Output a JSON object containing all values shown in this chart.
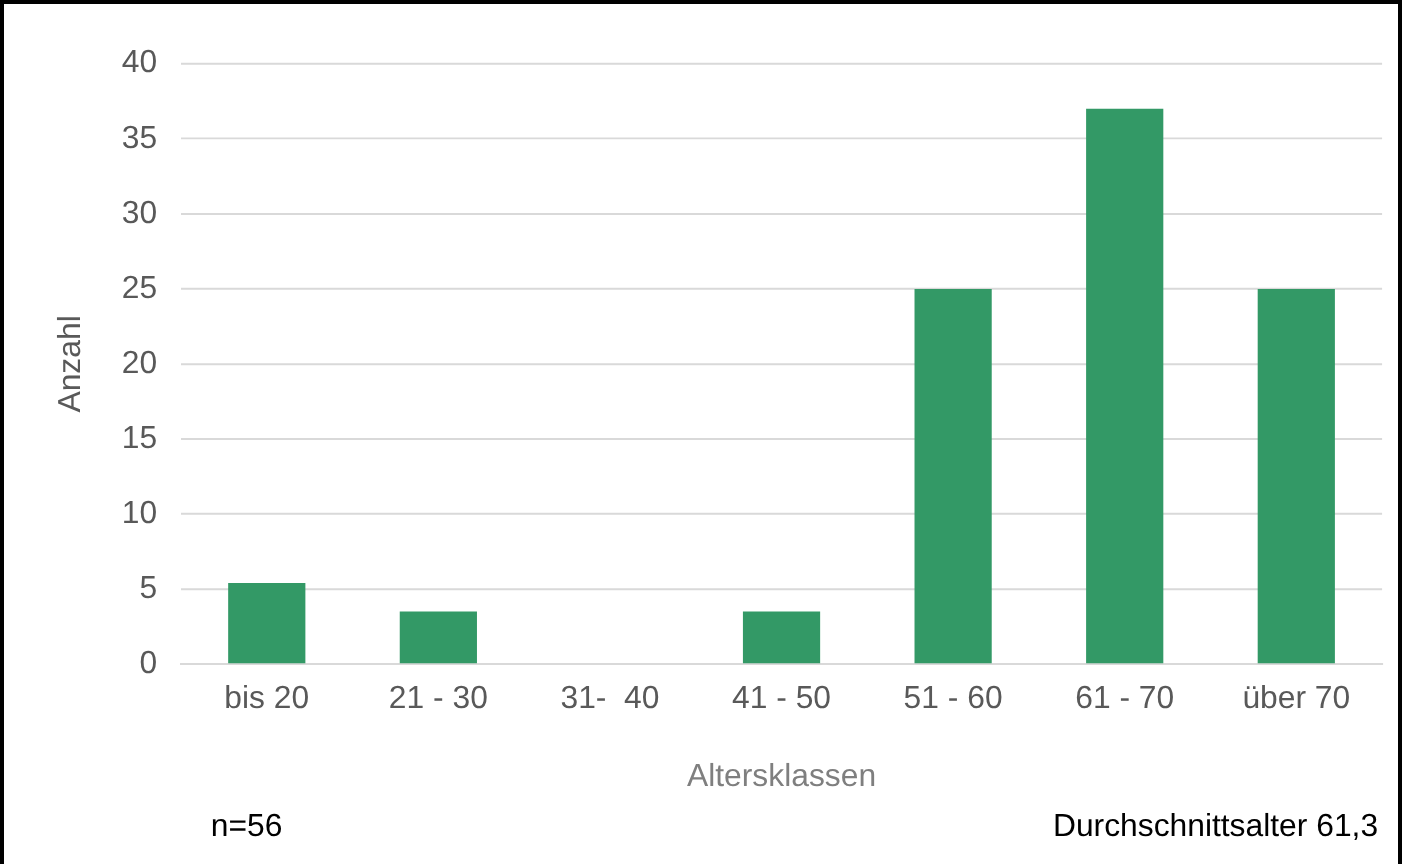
{
  "chart_data": {
    "type": "bar",
    "xlabel": "Altersklassen",
    "ylabel": "Anzahl",
    "categories": [
      "bis 20",
      "21 - 30",
      "31-  40",
      "41 - 50",
      "51 - 60",
      "61 - 70",
      "über 70"
    ],
    "values": [
      5.4,
      3.5,
      0,
      3.5,
      25,
      37,
      25
    ],
    "color": "#339966",
    "ylim": [
      0,
      40
    ],
    "yticks": [
      0,
      5,
      10,
      15,
      20,
      25,
      30,
      35,
      40
    ],
    "grid": "y",
    "legend": false,
    "annotations": [
      "n=56",
      "Durchschnittsalter 61,3"
    ]
  }
}
